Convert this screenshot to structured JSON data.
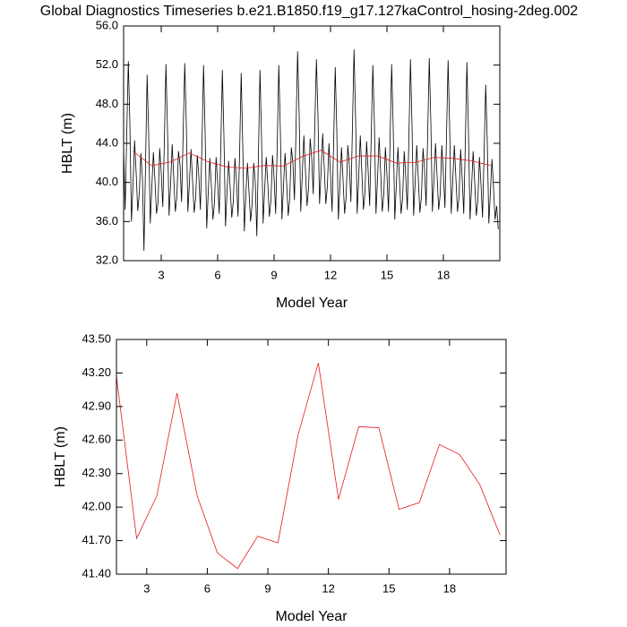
{
  "chart_data": [
    {
      "type": "line",
      "title": "Global Diagnostics Timeseries b.e21.B1850.f19_g17.127kaControl_hosing-2deg.002",
      "xlabel": "Model Year",
      "ylabel": "HBLT (m)",
      "xlim": [
        1,
        21
      ],
      "xticks": [
        3,
        6,
        9,
        12,
        15,
        18
      ],
      "ylim": [
        32,
        56
      ],
      "yticks": [
        {
          "value": 32,
          "label": "32.0"
        },
        {
          "value": 36,
          "label": "36.0"
        },
        {
          "value": 40,
          "label": "40.0"
        },
        {
          "value": 44,
          "label": "44.0"
        },
        {
          "value": 48,
          "label": "48.0"
        },
        {
          "value": 52,
          "label": "52.0"
        },
        {
          "value": 56,
          "label": "56.0"
        }
      ],
      "series": [
        {
          "color": "#000000",
          "x": [
            1,
            1.083,
            1.167,
            1.25,
            1.333,
            1.417,
            1.5,
            1.583,
            1.667,
            1.75,
            1.833,
            1.917,
            2,
            2.083,
            2.167,
            2.25,
            2.333,
            2.417,
            2.5,
            2.583,
            2.667,
            2.75,
            2.833,
            2.917,
            3,
            3.083,
            3.167,
            3.25,
            3.333,
            3.417,
            3.5,
            3.583,
            3.667,
            3.75,
            3.833,
            3.917,
            4,
            4.083,
            4.167,
            4.25,
            4.333,
            4.417,
            4.5,
            4.583,
            4.667,
            4.75,
            4.833,
            4.917,
            5,
            5.083,
            5.167,
            5.25,
            5.333,
            5.417,
            5.5,
            5.583,
            5.667,
            5.75,
            5.833,
            5.917,
            6,
            6.083,
            6.167,
            6.25,
            6.333,
            6.417,
            6.5,
            6.583,
            6.667,
            6.75,
            6.833,
            6.917,
            7,
            7.083,
            7.167,
            7.25,
            7.333,
            7.417,
            7.5,
            7.583,
            7.667,
            7.75,
            7.833,
            7.917,
            8,
            8.083,
            8.167,
            8.25,
            8.333,
            8.417,
            8.5,
            8.583,
            8.667,
            8.75,
            8.833,
            8.917,
            9,
            9.083,
            9.167,
            9.25,
            9.333,
            9.417,
            9.5,
            9.583,
            9.667,
            9.75,
            9.833,
            9.917,
            10,
            10.083,
            10.167,
            10.25,
            10.333,
            10.417,
            10.5,
            10.583,
            10.667,
            10.75,
            10.833,
            10.917,
            11,
            11.083,
            11.167,
            11.25,
            11.333,
            11.417,
            11.5,
            11.583,
            11.667,
            11.75,
            11.833,
            11.917,
            12,
            12.083,
            12.167,
            12.25,
            12.333,
            12.417,
            12.5,
            12.583,
            12.667,
            12.75,
            12.833,
            12.917,
            13,
            13.083,
            13.167,
            13.25,
            13.333,
            13.417,
            13.5,
            13.583,
            13.667,
            13.75,
            13.833,
            13.917,
            14,
            14.083,
            14.167,
            14.25,
            14.333,
            14.417,
            14.5,
            14.583,
            14.667,
            14.75,
            14.833,
            14.917,
            15,
            15.083,
            15.167,
            15.25,
            15.333,
            15.417,
            15.5,
            15.583,
            15.667,
            15.75,
            15.833,
            15.917,
            16,
            16.083,
            16.167,
            16.25,
            16.333,
            16.417,
            16.5,
            16.583,
            16.667,
            16.75,
            16.833,
            16.917,
            17,
            17.083,
            17.167,
            17.25,
            17.333,
            17.417,
            17.5,
            17.583,
            17.667,
            17.75,
            17.833,
            17.917,
            18,
            18.083,
            18.167,
            18.25,
            18.333,
            18.417,
            18.5,
            18.583,
            18.667,
            18.75,
            18.833,
            18.917,
            19,
            19.083,
            19.167,
            19.25,
            19.333,
            19.417,
            19.5,
            19.583,
            19.667,
            19.75,
            19.833,
            19.917,
            20,
            20.083,
            20.167,
            20.25,
            20.333,
            20.417,
            20.5,
            20.583,
            20.667,
            20.75,
            20.833,
            20.917
          ],
          "values": [
            43.5,
            37.2,
            45.0,
            52.4,
            46.1,
            36.0,
            39.8,
            44.3,
            41.0,
            37.1,
            38.8,
            43.0,
            40.5,
            33.0,
            42.0,
            51.0,
            45.0,
            35.8,
            39.5,
            43.1,
            40.2,
            36.8,
            38.0,
            43.5,
            41.0,
            37.5,
            44.2,
            52.1,
            45.5,
            36.6,
            39.9,
            43.9,
            40.4,
            37.0,
            38.6,
            43.2,
            41.8,
            38.0,
            45.0,
            52.2,
            46.0,
            37.0,
            40.0,
            43.4,
            40.1,
            36.9,
            38.5,
            42.8,
            40.6,
            37.2,
            44.0,
            52.0,
            45.2,
            35.3,
            39.0,
            42.5,
            39.6,
            36.2,
            38.0,
            42.6,
            40.0,
            36.8,
            43.6,
            51.5,
            44.8,
            35.5,
            39.2,
            42.2,
            39.4,
            36.4,
            38.1,
            42.5,
            40.2,
            36.5,
            43.0,
            51.2,
            44.0,
            35.0,
            38.8,
            42.0,
            39.0,
            36.0,
            37.8,
            42.0,
            40.0,
            34.5,
            42.8,
            51.5,
            44.5,
            35.8,
            39.4,
            42.6,
            39.8,
            36.5,
            38.2,
            42.8,
            40.5,
            36.8,
            43.8,
            52.0,
            45.3,
            36.2,
            39.6,
            43.0,
            40.0,
            36.6,
            38.4,
            43.6,
            42.0,
            38.2,
            45.6,
            53.4,
            47.0,
            37.0,
            40.8,
            44.8,
            41.2,
            37.6,
            39.4,
            44.5,
            42.5,
            38.8,
            46.0,
            52.6,
            46.8,
            37.8,
            41.2,
            45.0,
            41.5,
            37.8,
            39.6,
            44.0,
            40.8,
            37.0,
            44.2,
            51.8,
            45.4,
            36.2,
            39.8,
            43.6,
            40.2,
            36.8,
            38.6,
            43.8,
            41.8,
            38.0,
            45.8,
            53.6,
            46.6,
            36.8,
            40.6,
            44.8,
            41.0,
            37.2,
            39.0,
            44.2,
            41.2,
            37.6,
            45.0,
            52.0,
            46.0,
            36.8,
            40.4,
            44.6,
            41.0,
            37.0,
            38.8,
            43.6,
            40.8,
            37.0,
            44.4,
            52.1,
            45.6,
            36.2,
            39.8,
            43.6,
            40.3,
            36.8,
            38.4,
            43.2,
            40.6,
            37.2,
            44.6,
            52.6,
            45.8,
            36.6,
            40.0,
            43.8,
            40.4,
            36.9,
            38.5,
            43.5,
            41.2,
            37.6,
            45.2,
            52.7,
            46.2,
            37.0,
            40.4,
            44.0,
            40.6,
            37.2,
            38.8,
            43.8,
            40.9,
            37.4,
            44.8,
            52.5,
            45.8,
            36.8,
            40.2,
            43.8,
            40.4,
            37.0,
            38.6,
            43.4,
            40.4,
            36.8,
            44.0,
            52.3,
            45.2,
            36.2,
            39.6,
            43.2,
            40.0,
            36.6,
            38.2,
            42.6,
            39.8,
            36.4,
            43.2,
            50.0,
            44.2,
            35.8,
            39.0,
            42.4,
            39.4,
            36.2,
            37.6,
            35.2
          ]
        },
        {
          "color": "#e41a1c",
          "x": [
            1.5,
            2.5,
            3.5,
            4.5,
            5.5,
            6.5,
            7.5,
            8.5,
            9.5,
            10.5,
            11.5,
            12.5,
            13.5,
            14.5,
            15.5,
            16.5,
            17.5,
            18.5,
            19.5,
            20.5
          ],
          "values": [
            43.17,
            41.72,
            42.1,
            43.02,
            42.1,
            41.59,
            41.45,
            41.74,
            41.68,
            42.65,
            43.29,
            42.07,
            42.72,
            42.71,
            41.98,
            42.04,
            42.56,
            42.47,
            42.2,
            41.75
          ]
        }
      ]
    },
    {
      "type": "line",
      "xlabel": "Model Year",
      "ylabel": "HBLT (m)",
      "xlim": [
        1.5,
        20.8
      ],
      "xticks": [
        3,
        6,
        9,
        12,
        15,
        18
      ],
      "ylim": [
        41.4,
        43.5
      ],
      "yticks": [
        {
          "value": 41.4,
          "label": "41.40"
        },
        {
          "value": 41.7,
          "label": "41.70"
        },
        {
          "value": 42.0,
          "label": "42.00"
        },
        {
          "value": 42.3,
          "label": "42.30"
        },
        {
          "value": 42.6,
          "label": "42.60"
        },
        {
          "value": 42.9,
          "label": "42.90"
        },
        {
          "value": 43.2,
          "label": "43.20"
        },
        {
          "value": 43.5,
          "label": "43.50"
        }
      ],
      "series": [
        {
          "color": "#e41a1c",
          "x": [
            1.5,
            2.5,
            3.5,
            4.5,
            5.5,
            6.5,
            7.5,
            8.5,
            9.5,
            10.5,
            11.5,
            12.5,
            13.5,
            14.5,
            15.5,
            16.5,
            17.5,
            18.5,
            19.5,
            20.5
          ],
          "values": [
            43.17,
            41.72,
            42.1,
            43.02,
            42.1,
            41.59,
            41.45,
            41.74,
            41.68,
            42.65,
            43.29,
            42.07,
            42.72,
            42.71,
            41.98,
            42.04,
            42.56,
            42.47,
            42.2,
            41.75
          ]
        }
      ]
    }
  ]
}
